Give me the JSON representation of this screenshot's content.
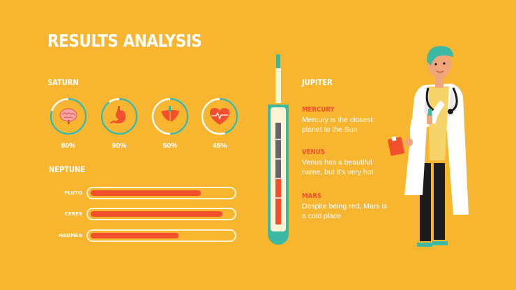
{
  "title": "RESULTS ANALYSIS",
  "left_section": {
    "heading": "SATURN"
  },
  "gauges": [
    {
      "icon": "brain-icon",
      "value": 0.8,
      "label": "80%"
    },
    {
      "icon": "stomach-icon",
      "value": 0.9,
      "label": "90%"
    },
    {
      "icon": "liver-icon",
      "value": 0.5,
      "label": "50%"
    },
    {
      "icon": "heart-icon",
      "value": 0.45,
      "label": "45%"
    }
  ],
  "bars_section": {
    "heading": "NEPTUNE"
  },
  "bars": [
    {
      "label": "PLUTO",
      "value": 0.78
    },
    {
      "label": "CERES",
      "value": 0.93
    },
    {
      "label": "HAUMEA",
      "value": 0.62
    }
  ],
  "right_section": {
    "heading": "JUPITER"
  },
  "notes": [
    {
      "title": "MERCURY",
      "text": "Mercury is the closest planet to the Sun"
    },
    {
      "title": "VENUS",
      "text": "Venus has a beautiful name, but it’s very hot"
    },
    {
      "title": "MARS",
      "text": "Despite being red, Mars is a cold place"
    }
  ],
  "thermometer": {
    "level": 0.45
  },
  "colors": {
    "background": "#F8B630",
    "accent": "#F2502C",
    "teal": "#3CB8A3",
    "white": "#FFFFFF"
  }
}
